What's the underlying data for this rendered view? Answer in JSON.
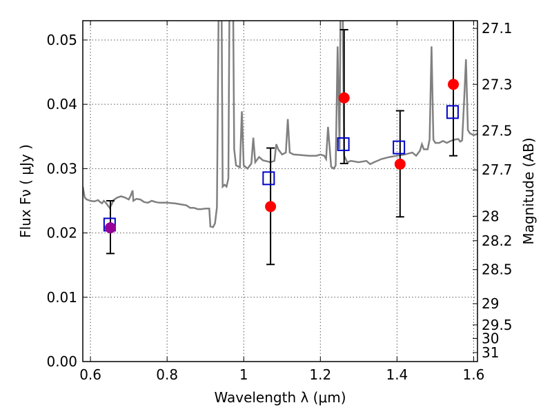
{
  "chart_data": {
    "type": "scatter",
    "xlabel": "Wavelength  λ (μm)",
    "ylabel": "Flux  Fν  ( μJy )",
    "y2label": "Magnitude (AB)",
    "xlim": [
      0.58,
      1.61
    ],
    "ylim": [
      0.0,
      0.053
    ],
    "grid": true,
    "x_ticks": [
      0.6,
      0.8,
      1.0,
      1.2,
      1.4,
      1.6
    ],
    "x_tick_labels": [
      "0.6",
      "0.8",
      "1",
      "1.2",
      "1.4",
      "1.6"
    ],
    "y_ticks": [
      0.0,
      0.01,
      0.02,
      0.03,
      0.04,
      0.05
    ],
    "y_tick_labels": [
      "0.00",
      "0.01",
      "0.02",
      "0.03",
      "0.04",
      "0.05"
    ],
    "y2_ticks": [
      {
        "label": "27.1",
        "flux": 0.0518
      },
      {
        "label": "27.3",
        "flux": 0.0431
      },
      {
        "label": "27.5",
        "flux": 0.0359
      },
      {
        "label": "27.7",
        "flux": 0.0298
      },
      {
        "label": "28",
        "flux": 0.0226
      },
      {
        "label": "28.2",
        "flux": 0.0188
      },
      {
        "label": "28.5",
        "flux": 0.0143
      },
      {
        "label": "29",
        "flux": 0.009
      },
      {
        "label": "29.5",
        "flux": 0.0057
      },
      {
        "label": "30",
        "flux": 0.0036
      },
      {
        "label": "31",
        "flux": 0.0014
      }
    ],
    "series": [
      {
        "kind": "model-spectrum",
        "color": "#808080",
        "points": [
          [
            0.58,
            0.0272
          ],
          [
            0.585,
            0.0255
          ],
          [
            0.59,
            0.0252
          ],
          [
            0.6,
            0.025
          ],
          [
            0.61,
            0.0249
          ],
          [
            0.62,
            0.0251
          ],
          [
            0.625,
            0.0248
          ],
          [
            0.63,
            0.0246
          ],
          [
            0.635,
            0.025
          ],
          [
            0.64,
            0.0247
          ],
          [
            0.645,
            0.0243
          ],
          [
            0.65,
            0.0239
          ],
          [
            0.655,
            0.0244
          ],
          [
            0.66,
            0.0251
          ],
          [
            0.67,
            0.0255
          ],
          [
            0.68,
            0.0257
          ],
          [
            0.69,
            0.0255
          ],
          [
            0.7,
            0.0252
          ],
          [
            0.705,
            0.0258
          ],
          [
            0.71,
            0.0266
          ],
          [
            0.712,
            0.025
          ],
          [
            0.72,
            0.0253
          ],
          [
            0.73,
            0.0252
          ],
          [
            0.74,
            0.0248
          ],
          [
            0.75,
            0.0247
          ],
          [
            0.76,
            0.025
          ],
          [
            0.77,
            0.0248
          ],
          [
            0.78,
            0.0247
          ],
          [
            0.8,
            0.0247
          ],
          [
            0.82,
            0.0246
          ],
          [
            0.84,
            0.0244
          ],
          [
            0.85,
            0.0243
          ],
          [
            0.86,
            0.0239
          ],
          [
            0.87,
            0.0239
          ],
          [
            0.88,
            0.0237
          ],
          [
            0.89,
            0.0237
          ],
          [
            0.9,
            0.0238
          ],
          [
            0.91,
            0.0238
          ],
          [
            0.913,
            0.021
          ],
          [
            0.92,
            0.0209
          ],
          [
            0.925,
            0.0215
          ],
          [
            0.93,
            0.024
          ],
          [
            0.935,
            0.058
          ],
          [
            0.942,
            0.058
          ],
          [
            0.945,
            0.0272
          ],
          [
            0.95,
            0.0275
          ],
          [
            0.955,
            0.0272
          ],
          [
            0.96,
            0.0285
          ],
          [
            0.963,
            0.058
          ],
          [
            0.972,
            0.058
          ],
          [
            0.975,
            0.033
          ],
          [
            0.98,
            0.0305
          ],
          [
            0.99,
            0.0302
          ],
          [
            0.995,
            0.0389
          ],
          [
            1.0,
            0.0305
          ],
          [
            1.01,
            0.03
          ],
          [
            1.02,
            0.0308
          ],
          [
            1.025,
            0.0348
          ],
          [
            1.03,
            0.031
          ],
          [
            1.04,
            0.0318
          ],
          [
            1.05,
            0.0313
          ],
          [
            1.07,
            0.031
          ],
          [
            1.08,
            0.0312
          ],
          [
            1.085,
            0.0338
          ],
          [
            1.09,
            0.033
          ],
          [
            1.1,
            0.0322
          ],
          [
            1.11,
            0.0325
          ],
          [
            1.115,
            0.0377
          ],
          [
            1.12,
            0.0325
          ],
          [
            1.13,
            0.0322
          ],
          [
            1.15,
            0.0321
          ],
          [
            1.17,
            0.032
          ],
          [
            1.19,
            0.032
          ],
          [
            1.2,
            0.0322
          ],
          [
            1.21,
            0.032
          ],
          [
            1.215,
            0.0315
          ],
          [
            1.22,
            0.0365
          ],
          [
            1.228,
            0.0303
          ],
          [
            1.235,
            0.03
          ],
          [
            1.24,
            0.0305
          ],
          [
            1.245,
            0.049
          ],
          [
            1.25,
            0.033
          ],
          [
            1.253,
            0.058
          ],
          [
            1.258,
            0.058
          ],
          [
            1.262,
            0.032
          ],
          [
            1.27,
            0.031
          ],
          [
            1.28,
            0.0312
          ],
          [
            1.3,
            0.031
          ],
          [
            1.32,
            0.0312
          ],
          [
            1.33,
            0.0307
          ],
          [
            1.34,
            0.031
          ],
          [
            1.36,
            0.0315
          ],
          [
            1.38,
            0.0318
          ],
          [
            1.4,
            0.032
          ],
          [
            1.42,
            0.0322
          ],
          [
            1.44,
            0.0325
          ],
          [
            1.45,
            0.032
          ],
          [
            1.46,
            0.0328
          ],
          [
            1.465,
            0.0338
          ],
          [
            1.47,
            0.033
          ],
          [
            1.48,
            0.033
          ],
          [
            1.485,
            0.0345
          ],
          [
            1.49,
            0.049
          ],
          [
            1.495,
            0.0345
          ],
          [
            1.5,
            0.034
          ],
          [
            1.51,
            0.034
          ],
          [
            1.52,
            0.0343
          ],
          [
            1.53,
            0.034
          ],
          [
            1.54,
            0.0343
          ],
          [
            1.55,
            0.0345
          ],
          [
            1.56,
            0.0346
          ],
          [
            1.565,
            0.0342
          ],
          [
            1.57,
            0.0344
          ],
          [
            1.575,
            0.0405
          ],
          [
            1.58,
            0.047
          ],
          [
            1.585,
            0.036
          ],
          [
            1.59,
            0.0355
          ],
          [
            1.6,
            0.0352
          ],
          [
            1.61,
            0.0354
          ]
        ]
      },
      {
        "kind": "model-photometry",
        "marker": "open-square",
        "color": "#0000cc",
        "x": [
          0.65,
          1.065,
          1.26,
          1.405,
          1.545
        ],
        "y": [
          0.0213,
          0.0285,
          0.0338,
          0.0333,
          0.0388
        ]
      },
      {
        "kind": "observed-photometry",
        "marker": "filled-circle",
        "color": "#ff0000",
        "x": [
          1.07,
          1.262,
          1.408,
          1.547
        ],
        "y": [
          0.0241,
          0.041,
          0.0307,
          0.0431
        ],
        "yerr_low": [
          0.009,
          0.0102,
          0.0082,
          0.0111
        ],
        "yerr_high": [
          0.0091,
          0.0106,
          0.0083,
          0.0111
        ]
      },
      {
        "kind": "observed-photometry-optical",
        "marker": "filled-circle",
        "color": "#990099",
        "x": [
          0.652
        ],
        "y": [
          0.0208
        ],
        "yerr_low": [
          0.004
        ],
        "yerr_high": [
          0.0042
        ]
      }
    ]
  }
}
